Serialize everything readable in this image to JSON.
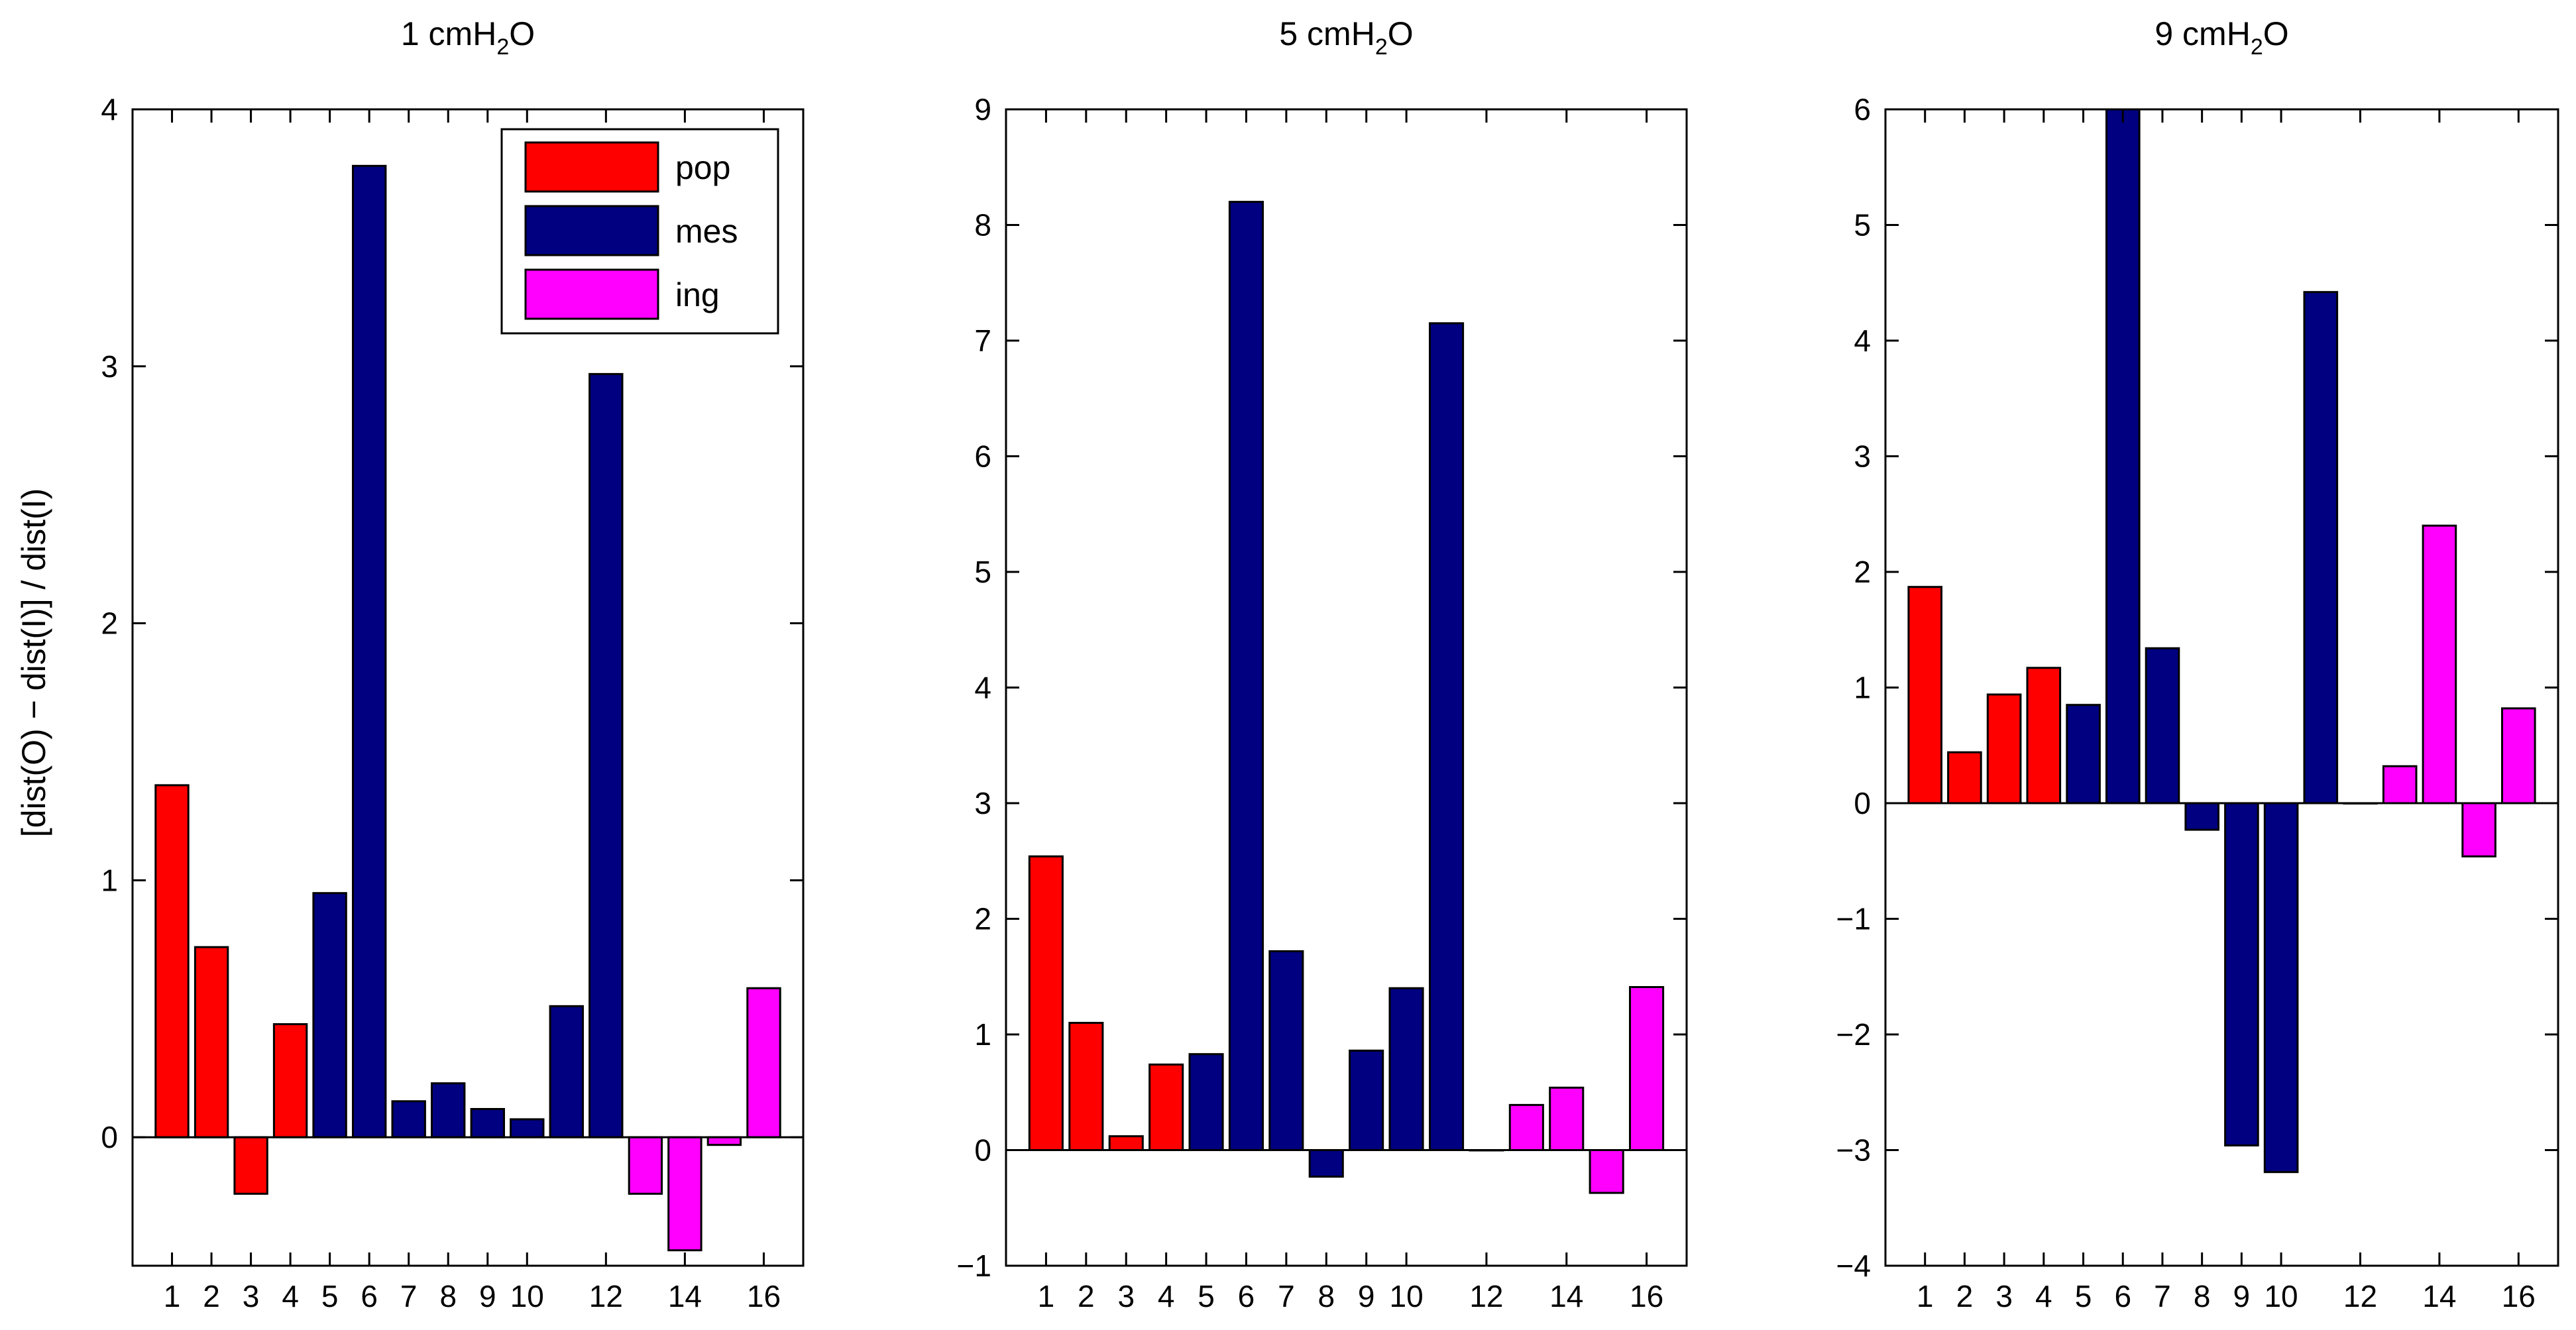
{
  "chart_data": {
    "type": "bar",
    "ylabel": "[dist(O) − dist(I)] / dist(I)",
    "xlabel": "",
    "legend": {
      "placement": "top-right of first panel",
      "entries": [
        {
          "label": "pop",
          "color": "#ff0000"
        },
        {
          "label": "mes",
          "color": "#000080"
        },
        {
          "label": "ing",
          "color": "#ff00ff"
        }
      ]
    },
    "categories": [
      1,
      2,
      3,
      4,
      5,
      6,
      7,
      8,
      9,
      10,
      11,
      12,
      13,
      14,
      15,
      16
    ],
    "group_of_category": [
      "pop",
      "pop",
      "pop",
      "pop",
      "mes",
      "mes",
      "mes",
      "mes",
      "mes",
      "mes",
      "mes",
      "mes",
      "ing",
      "ing",
      "ing",
      "ing"
    ],
    "group_colors": {
      "pop": "#ff0000",
      "mes": "#000080",
      "ing": "#ff00ff"
    },
    "panels": [
      {
        "title_main": "1 cmH",
        "title_sub": "2",
        "title_tail": "O",
        "ylim": [
          -0.5,
          4
        ],
        "yticks": [
          0,
          1,
          2,
          3,
          4
        ],
        "xtick_labels": [
          "1",
          "2",
          "3",
          "4",
          "5",
          "6",
          "7",
          "8",
          "9",
          "10",
          "12",
          "14",
          "16"
        ],
        "xtick_positions": [
          1,
          2,
          3,
          4,
          5,
          6,
          7,
          8,
          9,
          10,
          12,
          14,
          16
        ],
        "values": [
          1.37,
          0.74,
          -0.22,
          0.44,
          0.95,
          3.78,
          0.14,
          0.21,
          0.11,
          0.07,
          0.51,
          2.97,
          -0.22,
          -0.44,
          -0.03,
          0.58
        ]
      },
      {
        "title_main": "5 cmH",
        "title_sub": "2",
        "title_tail": "O",
        "ylim": [
          -1,
          9
        ],
        "yticks": [
          -1,
          0,
          1,
          2,
          3,
          4,
          5,
          6,
          7,
          8,
          9
        ],
        "xtick_labels": [
          "1",
          "2",
          "3",
          "4",
          "5",
          "6",
          "7",
          "8",
          "9",
          "10",
          "12",
          "14",
          "16"
        ],
        "xtick_positions": [
          1,
          2,
          3,
          4,
          5,
          6,
          7,
          8,
          9,
          10,
          12,
          14,
          16
        ],
        "values": [
          2.54,
          1.1,
          0.12,
          0.74,
          0.83,
          8.2,
          1.72,
          -0.23,
          0.86,
          1.4,
          7.15,
          0,
          0.39,
          0.54,
          -0.37,
          1.41
        ]
      },
      {
        "title_main": "9 cmH",
        "title_sub": "2",
        "title_tail": "O",
        "ylim": [
          -4,
          6
        ],
        "yticks": [
          -4,
          -3,
          -2,
          -1,
          0,
          1,
          2,
          3,
          4,
          5,
          6
        ],
        "xtick_labels": [
          "1",
          "2",
          "3",
          "4",
          "5",
          "6",
          "7",
          "8",
          "9",
          "10",
          "12",
          "14",
          "16"
        ],
        "xtick_positions": [
          1,
          2,
          3,
          4,
          5,
          6,
          7,
          8,
          9,
          10,
          12,
          14,
          16
        ],
        "values": [
          1.87,
          0.44,
          0.94,
          1.17,
          0.85,
          6.0,
          1.34,
          -0.23,
          -2.96,
          -3.19,
          4.42,
          0,
          0.32,
          2.4,
          -0.46,
          0.82
        ]
      }
    ]
  }
}
